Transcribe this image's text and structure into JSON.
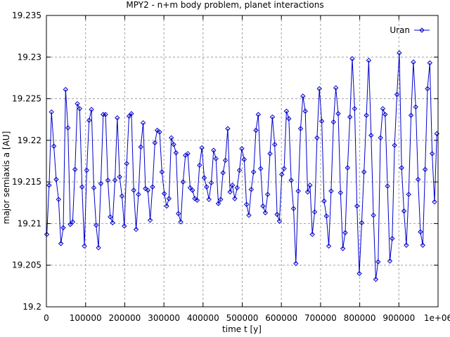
{
  "chart_data": {
    "type": "line",
    "title": "MPY2 - n+m body problem, planet interactions",
    "xlabel": "time t [y]",
    "ylabel": "major semiaxis a [AU]",
    "xlim": [
      0,
      1000000
    ],
    "ylim": [
      19.2,
      19.235
    ],
    "grid": true,
    "legend_position": "top-right",
    "x_ticks": [
      0,
      100000,
      200000,
      300000,
      400000,
      500000,
      600000,
      700000,
      800000,
      900000,
      1000000
    ],
    "x_tick_labels": [
      "0",
      "100000",
      "200000",
      "300000",
      "400000",
      "500000",
      "600000",
      "700000",
      "800000",
      "900000",
      "1e+06"
    ],
    "y_ticks": [
      19.2,
      19.205,
      19.21,
      19.215,
      19.22,
      19.225,
      19.23,
      19.235
    ],
    "y_tick_labels": [
      "19.2",
      "19.205",
      "19.21",
      "19.215",
      "19.22",
      "19.225",
      "19.23",
      "19.235"
    ],
    "series": [
      {
        "name": "Uran",
        "color": "#0000cc",
        "marker": "diamond",
        "x": [
          1000,
          7000,
          13000,
          19000,
          25000,
          31000,
          37000,
          43000,
          49000,
          55000,
          61000,
          67000,
          73000,
          79000,
          85000,
          91000,
          97000,
          103000,
          109000,
          115000,
          121000,
          127000,
          133000,
          139000,
          145000,
          151000,
          157000,
          163000,
          169000,
          175000,
          181000,
          187000,
          193000,
          199000,
          205000,
          211000,
          217000,
          223000,
          229000,
          235000,
          241000,
          247000,
          253000,
          259000,
          265000,
          271000,
          277000,
          283000,
          289000,
          295000,
          301000,
          307000,
          313000,
          319000,
          325000,
          331000,
          337000,
          343000,
          349000,
          355000,
          361000,
          367000,
          373000,
          379000,
          385000,
          391000,
          397000,
          403000,
          409000,
          415000,
          421000,
          427000,
          433000,
          439000,
          445000,
          451000,
          457000,
          463000,
          469000,
          475000,
          481000,
          487000,
          493000,
          499000,
          505000,
          511000,
          517000,
          523000,
          529000,
          535000,
          541000,
          547000,
          553000,
          559000,
          565000,
          571000,
          577000,
          583000,
          589000,
          595000,
          601000,
          607000,
          613000,
          619000,
          625000,
          631000,
          637000,
          643000,
          649000,
          655000,
          661000,
          667000,
          673000,
          679000,
          685000,
          691000,
          697000,
          703000,
          709000,
          715000,
          721000,
          727000,
          733000,
          739000,
          745000,
          751000,
          757000,
          763000,
          769000,
          775000,
          781000,
          787000,
          793000,
          799000,
          805000,
          811000,
          817000,
          823000,
          829000,
          835000,
          841000,
          847000,
          853000,
          859000,
          865000,
          871000,
          877000,
          883000,
          889000,
          895000,
          901000,
          907000,
          913000,
          919000,
          925000,
          931000,
          937000,
          943000,
          949000,
          955000,
          961000,
          967000,
          973000,
          979000,
          985000,
          991000,
          997000
        ],
        "y": [
          19.2087,
          19.2146,
          19.2234,
          19.2193,
          19.2153,
          19.2129,
          19.2076,
          19.2095,
          19.2261,
          19.2215,
          19.2099,
          19.2102,
          19.2165,
          19.2244,
          19.2238,
          19.2144,
          19.2073,
          19.2164,
          19.2224,
          19.2237,
          19.2143,
          19.2098,
          19.2071,
          19.2148,
          19.2231,
          19.2231,
          19.2152,
          19.2108,
          19.2101,
          19.2152,
          19.2227,
          19.2156,
          19.2133,
          19.2097,
          19.2172,
          19.2229,
          19.2232,
          19.214,
          19.2093,
          19.2135,
          19.2192,
          19.2221,
          19.2142,
          19.214,
          19.2104,
          19.2144,
          19.2197,
          19.2212,
          19.221,
          19.2162,
          19.2136,
          19.2121,
          19.213,
          19.2203,
          19.2195,
          19.2185,
          19.2112,
          19.2102,
          19.215,
          19.2182,
          19.2184,
          19.2143,
          19.214,
          19.213,
          19.2128,
          19.217,
          19.2191,
          19.2155,
          19.2144,
          19.2129,
          19.2149,
          19.2188,
          19.2178,
          19.2124,
          19.2129,
          19.2161,
          19.2176,
          19.2214,
          19.2138,
          19.2146,
          19.213,
          19.2143,
          19.2164,
          19.219,
          19.2177,
          19.2123,
          19.211,
          19.2141,
          19.2162,
          19.2212,
          19.2231,
          19.2166,
          19.2121,
          19.2113,
          19.2135,
          19.2184,
          19.2228,
          19.2195,
          19.2111,
          19.2103,
          19.2159,
          19.2166,
          19.2235,
          19.2226,
          19.2152,
          19.2118,
          19.2052,
          19.2139,
          19.2214,
          19.2253,
          19.2235,
          19.2138,
          19.2146,
          19.2087,
          19.2114,
          19.2203,
          19.2262,
          19.2223,
          19.2127,
          19.2109,
          19.2073,
          19.2139,
          19.2222,
          19.2263,
          19.2232,
          19.2137,
          19.207,
          19.2089,
          19.2167,
          19.2228,
          19.2298,
          19.2238,
          19.2121,
          19.204,
          19.2101,
          19.2162,
          19.223,
          19.2296,
          19.2206,
          19.211,
          19.2033,
          19.2054,
          19.2203,
          19.2238,
          19.2231,
          19.2145,
          19.2055,
          19.2082,
          19.2194,
          19.2255,
          19.2305,
          19.2167,
          19.2115,
          19.2074,
          19.2135,
          19.223,
          19.2294,
          19.224,
          19.2153,
          19.209,
          19.2074,
          19.2165,
          19.2262,
          19.2293,
          19.2184,
          19.2126,
          19.2208
        ]
      }
    ]
  }
}
